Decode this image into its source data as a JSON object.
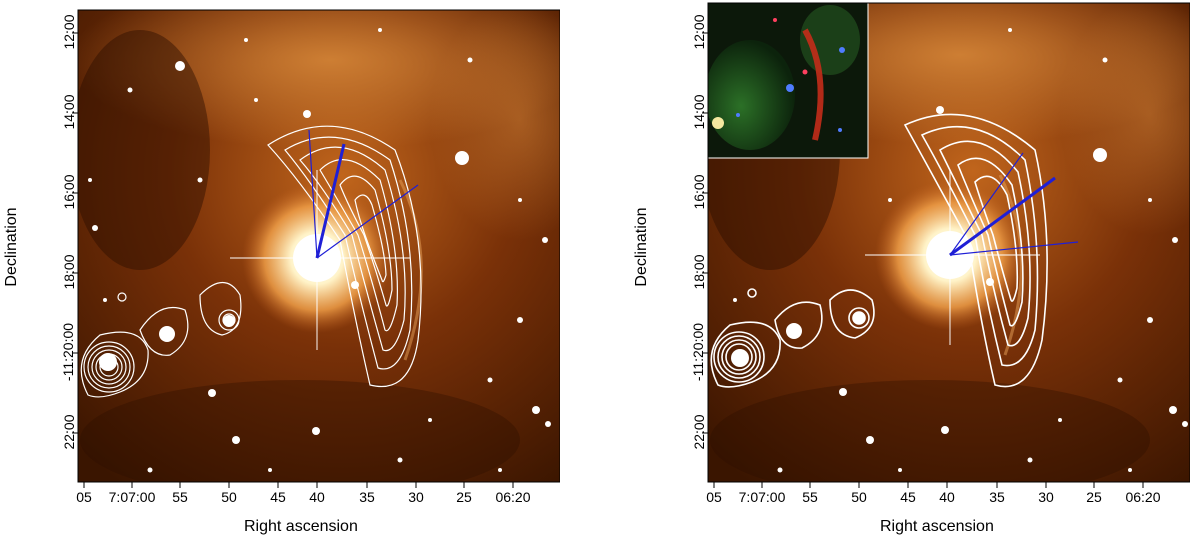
{
  "panels": [
    {
      "xlabel": "Right ascension",
      "ylabel": "Declination",
      "xticks": [
        "05",
        "7:07:00",
        "55",
        "50",
        "45",
        "40",
        "35",
        "30",
        "25",
        "06:20"
      ],
      "yticks": [
        "12:00",
        "14:00",
        "16:00",
        "18:00",
        "-11:20:00",
        "22:00"
      ]
    },
    {
      "xlabel": "Right ascension",
      "ylabel": "Declination",
      "xticks": [
        "05",
        "7:07:00",
        "55",
        "50",
        "45",
        "40",
        "35",
        "30",
        "25",
        "06:20"
      ],
      "yticks": [
        "12:00",
        "14:00",
        "16:00",
        "18:00",
        "-11:20:00",
        "22:00"
      ],
      "inset": "rgb-composite"
    }
  ],
  "colors": {
    "background": "#ffffff",
    "sky_dark": "#3a1500",
    "nebula": "#a84a10",
    "contours": "#ffffff",
    "vectors": "#1f1fd6"
  }
}
